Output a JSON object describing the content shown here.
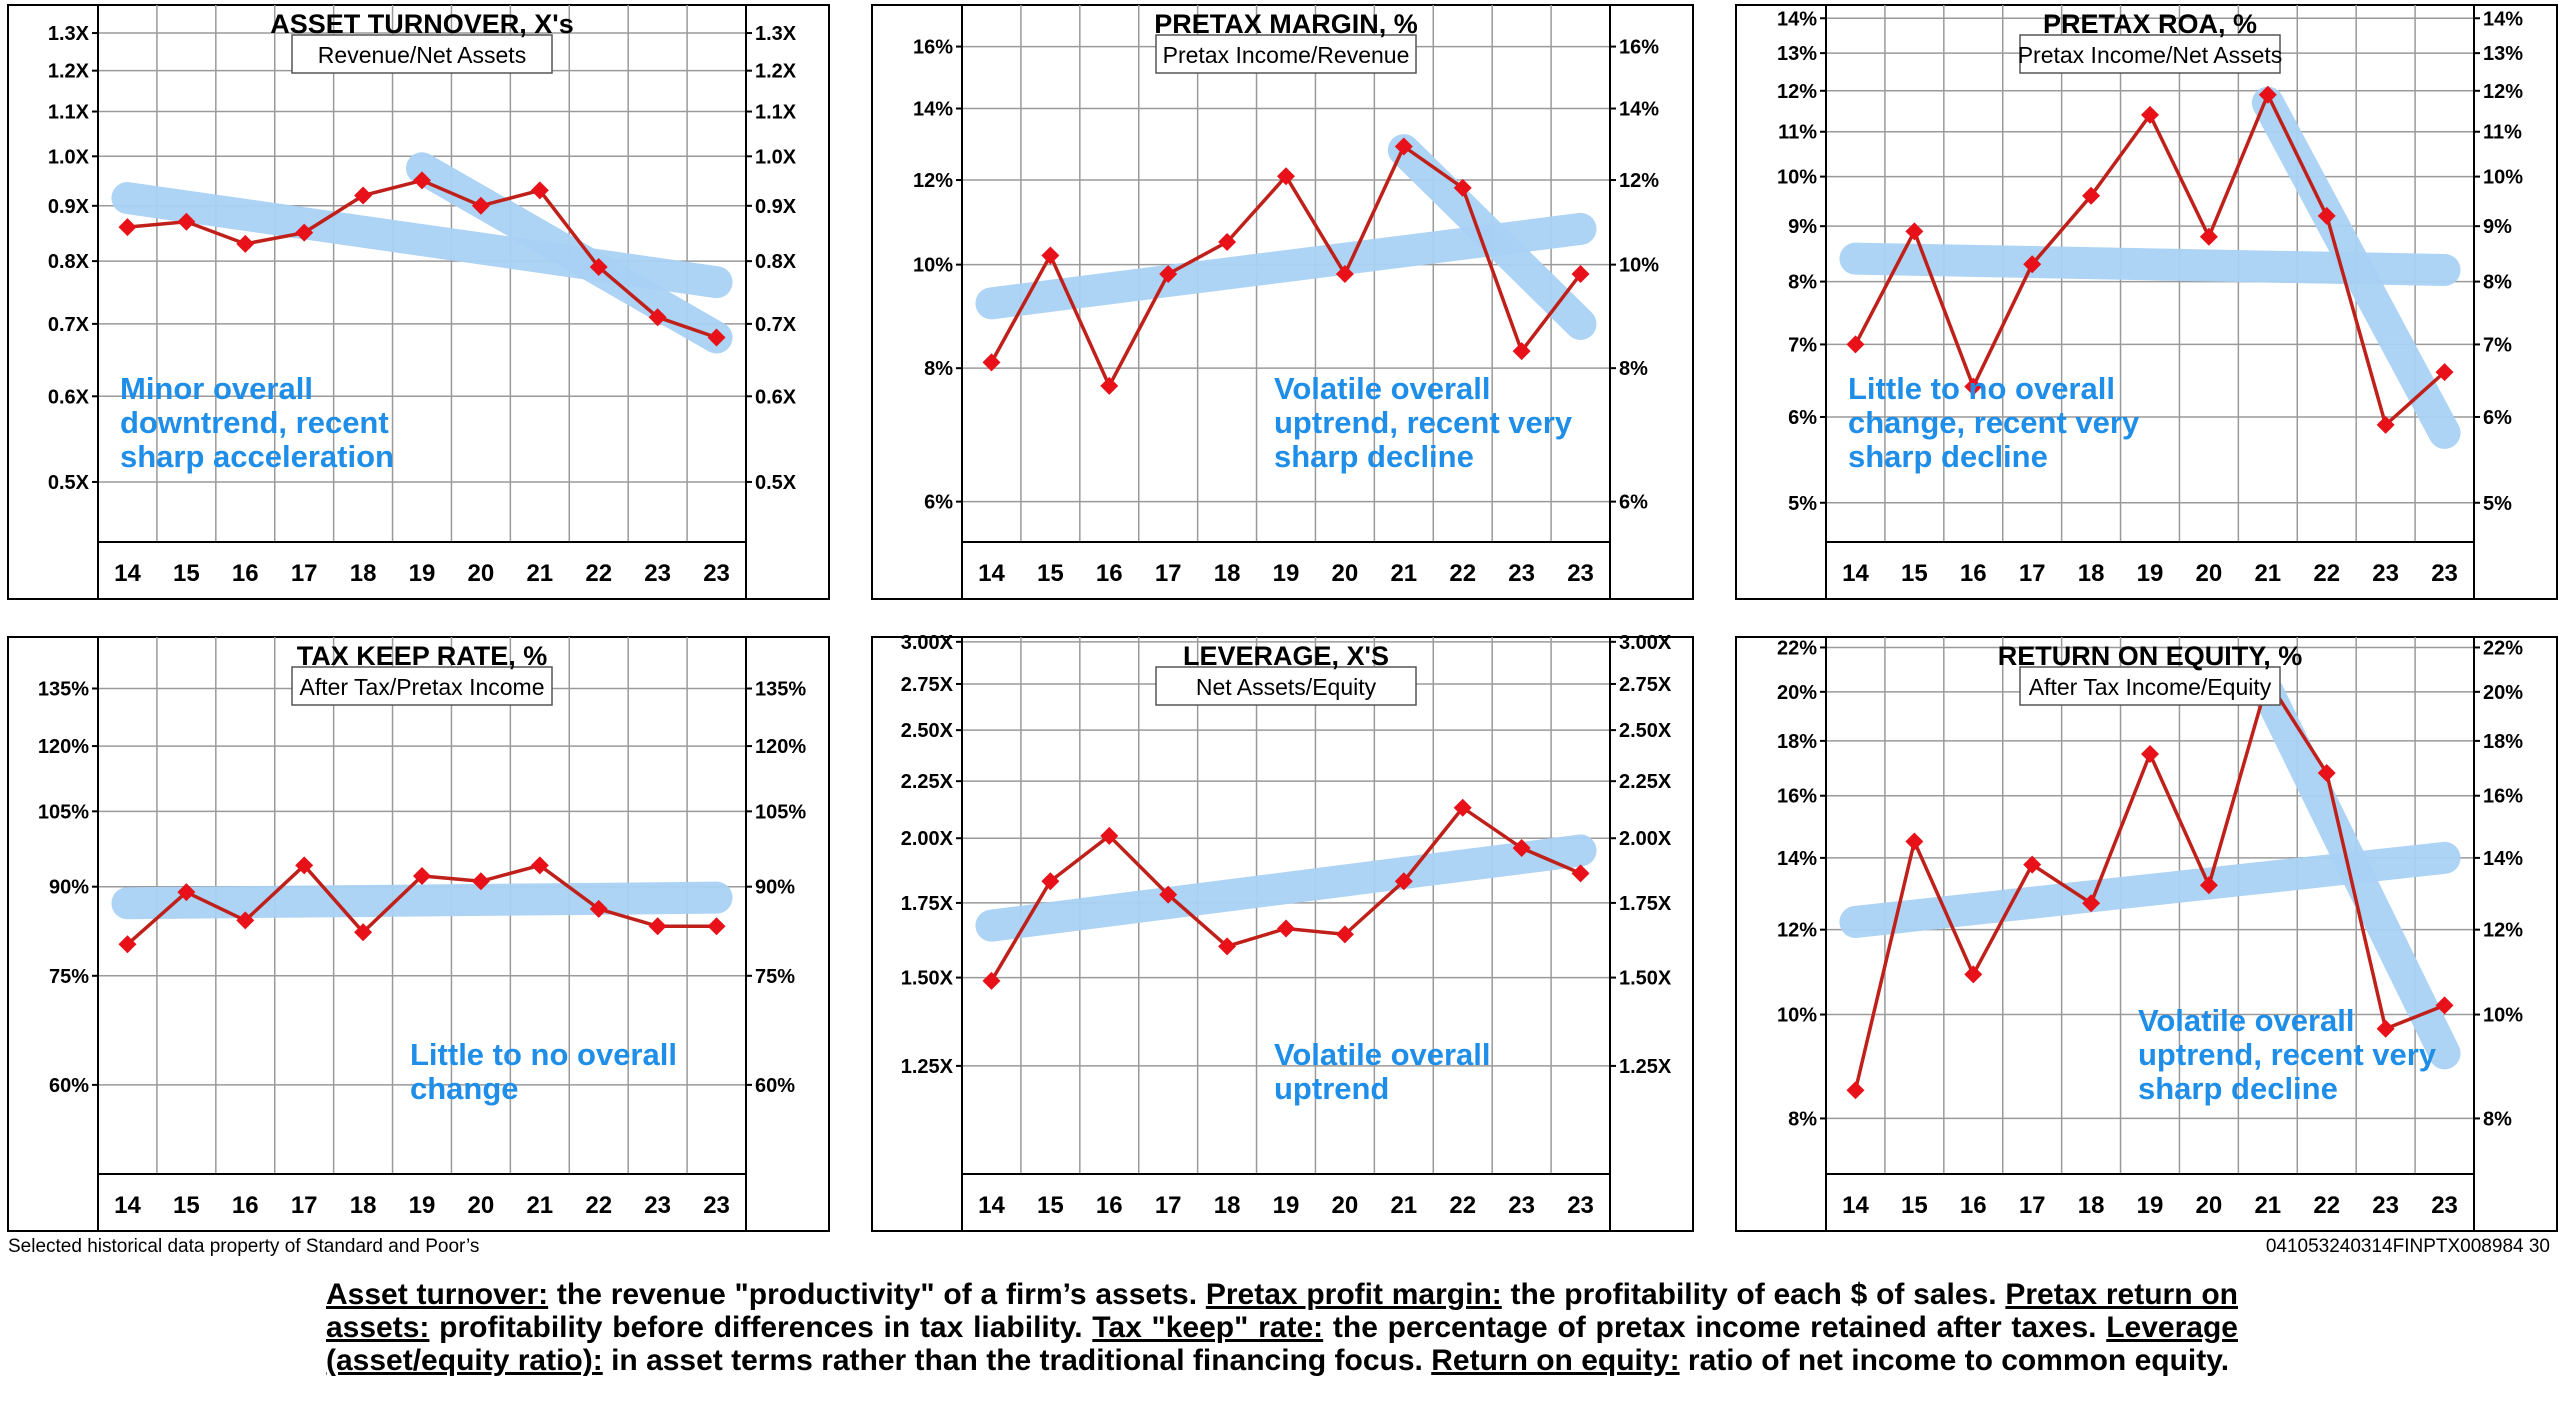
{
  "colors": {
    "trend_band": "#a9d1f5",
    "data_line": "#c0201a",
    "marker": "#e8111a",
    "note_text": "#1f8ee8",
    "grid": "#9a9a9a"
  },
  "footer": {
    "source": "Selected historical data property of Standard and Poor’s",
    "code": "041053240314FINPTX008984  30"
  },
  "glossary": {
    "parts": [
      {
        "term": "Asset turnover:",
        "text": " the revenue \"productivity\" of a firm’s assets. "
      },
      {
        "term": "Pretax profit margin:",
        "text": " the profitability of each $ of sales. "
      },
      {
        "term": "Pretax return on assets:",
        "text": " profitability before differences in tax liability. "
      },
      {
        "term": "Tax \"keep\" rate:",
        "text": " the percentage of pretax income retained after taxes. "
      },
      {
        "term": "Leverage (asset/equity ratio):",
        "text": " in asset terms rather than the traditional financing focus. "
      },
      {
        "term": "Return on equity:",
        "text": " ratio of net income to common equity."
      }
    ]
  },
  "chart_data": [
    {
      "type": "line",
      "scale": "log",
      "title": "ASSET TURNOVER, X's",
      "subtitle": "Revenue/Net Assets",
      "categories": [
        "14",
        "15",
        "16",
        "17",
        "18",
        "19",
        "20",
        "21",
        "22",
        "23",
        "23"
      ],
      "values": [
        0.86,
        0.87,
        0.83,
        0.85,
        0.92,
        0.95,
        0.9,
        0.93,
        0.79,
        0.71,
        0.68
      ],
      "ylim": [
        0.44,
        1.38
      ],
      "yticks": [
        0.5,
        0.6,
        0.7,
        0.8,
        0.9,
        1.0,
        1.1,
        1.2,
        1.3
      ],
      "ytick_labels": [
        "0.5X",
        "0.6X",
        "0.7X",
        "0.8X",
        "0.9X",
        "1.0X",
        "1.1X",
        "1.2X",
        "1.3X"
      ],
      "trends": [
        {
          "from": [
            0,
            0.915
          ],
          "to": [
            10,
            0.765
          ]
        },
        {
          "from": [
            5,
            0.975
          ],
          "to": [
            10,
            0.68
          ]
        }
      ],
      "note": [
        "Minor overall",
        "downtrend, recent",
        "sharp acceleration"
      ],
      "note_pos": "left"
    },
    {
      "type": "line",
      "scale": "log",
      "title": "PRETAX MARGIN, %",
      "subtitle": "Pretax Income/Revenue",
      "categories": [
        "14",
        "15",
        "16",
        "17",
        "18",
        "19",
        "20",
        "21",
        "22",
        "23",
        "23"
      ],
      "values": [
        8.1,
        10.2,
        7.7,
        9.8,
        10.5,
        12.1,
        9.8,
        12.9,
        11.8,
        8.3,
        9.8
      ],
      "ylim": [
        5.5,
        17.5
      ],
      "yticks": [
        6,
        8,
        10,
        12,
        14,
        16
      ],
      "ytick_labels": [
        "6%",
        "8%",
        "10%",
        "12%",
        "14%",
        "16%"
      ],
      "trends": [
        {
          "from": [
            0,
            9.2
          ],
          "to": [
            10,
            10.8
          ]
        },
        {
          "from": [
            7,
            12.8
          ],
          "to": [
            10,
            8.8
          ]
        }
      ],
      "note": [
        "Volatile overall",
        "uptrend, recent very",
        "sharp decline"
      ],
      "note_pos": "right"
    },
    {
      "type": "line",
      "scale": "log",
      "title": "PRETAX ROA, %",
      "subtitle": "Pretax Income/Net Assets",
      "categories": [
        "14",
        "15",
        "16",
        "17",
        "18",
        "19",
        "20",
        "21",
        "22",
        "23",
        "23"
      ],
      "values": [
        7.0,
        8.9,
        6.4,
        8.3,
        9.6,
        11.4,
        8.8,
        11.9,
        9.2,
        5.9,
        6.6
      ],
      "ylim": [
        4.6,
        14.4
      ],
      "yticks": [
        5,
        6,
        7,
        8,
        9,
        10,
        11,
        12,
        13,
        14
      ],
      "ytick_labels": [
        "5%",
        "6%",
        "7%",
        "8%",
        "9%",
        "10%",
        "11%",
        "12%",
        "13%",
        "14%"
      ],
      "trends": [
        {
          "from": [
            0,
            8.4
          ],
          "to": [
            10,
            8.2
          ]
        },
        {
          "from": [
            7,
            11.7
          ],
          "to": [
            10,
            5.8
          ]
        }
      ],
      "note": [
        "Little to no overall",
        "change, recent very",
        "sharp decline"
      ],
      "note_pos": "left"
    },
    {
      "type": "line",
      "scale": "log",
      "title": "TAX KEEP RATE, %",
      "subtitle": "After Tax/Pretax Income",
      "categories": [
        "14",
        "15",
        "16",
        "17",
        "18",
        "19",
        "20",
        "21",
        "22",
        "23",
        "23"
      ],
      "values": [
        80,
        89,
        84,
        94,
        82,
        92,
        91,
        94,
        86,
        83,
        83
      ],
      "ylim": [
        50,
        150
      ],
      "yticks": [
        60,
        75,
        90,
        105,
        120,
        135
      ],
      "ytick_labels": [
        "60%",
        "75%",
        "90%",
        "105%",
        "120%",
        "135%"
      ],
      "trends": [
        {
          "from": [
            0,
            87
          ],
          "to": [
            10,
            88
          ]
        }
      ],
      "note": [
        "Little to no overall",
        "change"
      ],
      "note_pos": "right"
    },
    {
      "type": "line",
      "scale": "log",
      "title": "LEVERAGE, X'S",
      "subtitle": "Net Assets/Equity",
      "categories": [
        "14",
        "15",
        "16",
        "17",
        "18",
        "19",
        "20",
        "21",
        "22",
        "23",
        "23"
      ],
      "values": [
        1.49,
        1.83,
        2.01,
        1.78,
        1.6,
        1.66,
        1.64,
        1.83,
        2.13,
        1.96,
        1.86
      ],
      "ylim": [
        1.0,
        3.03
      ],
      "yticks": [
        1.25,
        1.5,
        1.75,
        2.0,
        2.25,
        2.5,
        2.75,
        3.0
      ],
      "ytick_labels": [
        "1.25X",
        "1.50X",
        "1.75X",
        "2.00X",
        "2.25X",
        "2.50X",
        "2.75X",
        "3.00X"
      ],
      "trends": [
        {
          "from": [
            0,
            1.67
          ],
          "to": [
            10,
            1.95
          ]
        }
      ],
      "note": [
        "Volatile overall",
        "uptrend"
      ],
      "note_pos": "right"
    },
    {
      "type": "line",
      "scale": "log",
      "title": "RETURN ON EQUITY, %",
      "subtitle": "After Tax Income/Equity",
      "categories": [
        "14",
        "15",
        "16",
        "17",
        "18",
        "19",
        "20",
        "21",
        "22",
        "23",
        "23"
      ],
      "values": [
        8.5,
        14.5,
        10.9,
        13.8,
        12.7,
        17.5,
        13.2,
        20.5,
        16.8,
        9.7,
        10.2
      ],
      "ylim": [
        7.1,
        22.5
      ],
      "yticks": [
        8,
        10,
        12,
        14,
        16,
        18,
        20,
        22
      ],
      "ytick_labels": [
        "8%",
        "10%",
        "12%",
        "14%",
        "16%",
        "18%",
        "20%",
        "22%"
      ],
      "trends": [
        {
          "from": [
            0,
            12.2
          ],
          "to": [
            10,
            14.0
          ]
        },
        {
          "from": [
            7,
            20.0
          ],
          "to": [
            10,
            9.2
          ]
        }
      ],
      "note": [
        "Volatile overall",
        "uptrend, recent very",
        "sharp decline"
      ],
      "note_pos": "right"
    }
  ]
}
